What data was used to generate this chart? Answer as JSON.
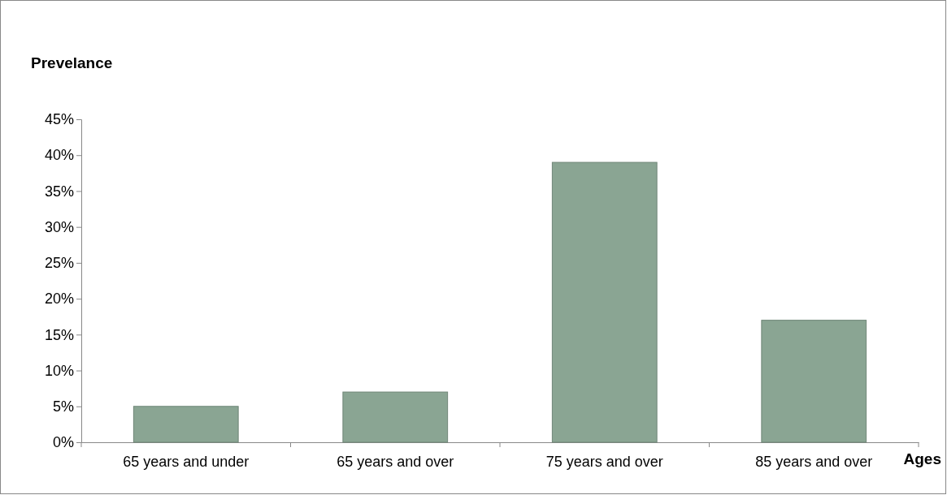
{
  "chart_data": {
    "type": "bar",
    "ylabel": "Prevelance",
    "xlabel": "Ages",
    "categories": [
      "65 years and under",
      "65 years and over",
      "75 years and over",
      "85 years and over"
    ],
    "values": [
      5,
      7,
      39,
      17
    ],
    "color": "#8aa593",
    "ylim": [
      0,
      45
    ],
    "yticks": [
      {
        "value": 0,
        "label": "0%"
      },
      {
        "value": 5,
        "label": "5%"
      },
      {
        "value": 10,
        "label": "10%"
      },
      {
        "value": 15,
        "label": "15%"
      },
      {
        "value": 20,
        "label": "20%"
      },
      {
        "value": 25,
        "label": "25%"
      },
      {
        "value": 30,
        "label": "30%"
      },
      {
        "value": 35,
        "label": "35%"
      },
      {
        "value": 40,
        "label": "40%"
      },
      {
        "value": 45,
        "label": "45%"
      }
    ],
    "grid": false
  }
}
